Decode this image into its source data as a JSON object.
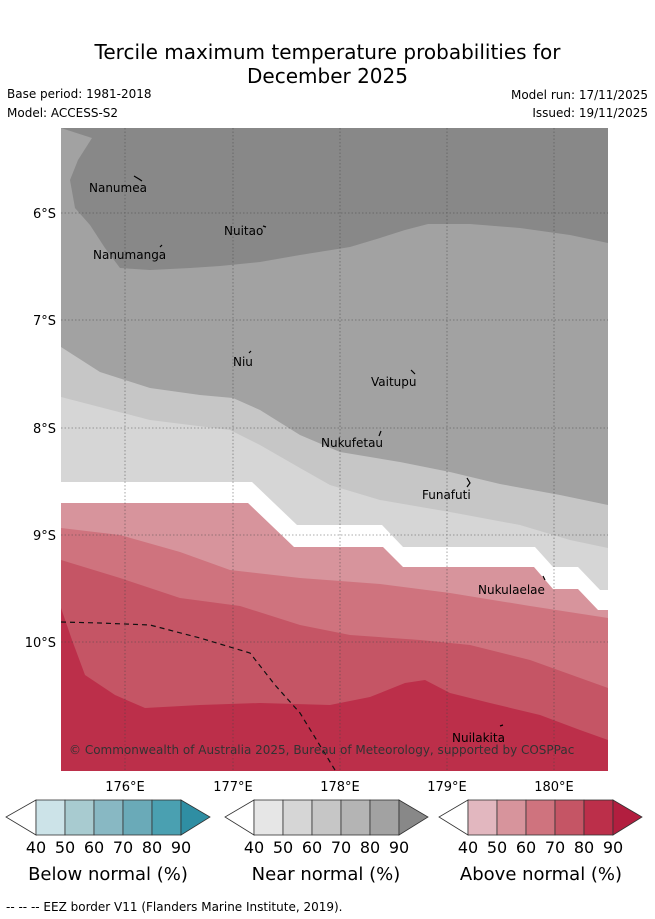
{
  "title_line1": "Tercile maximum temperature probabilities for",
  "title_line2": "December 2025",
  "base_period": "Base period: 1981-2018",
  "model": "Model: ACCESS-S2",
  "model_run": "Model run: 17/11/2025",
  "issued": "Issued: 19/11/2025",
  "map": {
    "lat_ticks": [
      "6°S",
      "7°S",
      "8°S",
      "9°S",
      "10°S"
    ],
    "lon_ticks": [
      "176°E",
      "177°E",
      "178°E",
      "179°E",
      "180°E"
    ],
    "places": {
      "nanumea": "Nanumea",
      "nuitao": "Nuitao",
      "nanumanga": "Nanumanga",
      "niu": "Niu",
      "vaitupu": "Vaitupu",
      "nukufetau": "Nukufetau",
      "funafuti": "Funafuti",
      "nukulaelae": "Nukulaelae",
      "nuilakita": "Nuilakita"
    },
    "copyright": "© Commonwealth of Australia 2025, Bureau of Meteorology, supported by COSPPac"
  },
  "colors": {
    "near": [
      "#e6e6e6",
      "#d6d6d6",
      "#c6c6c6",
      "#b4b4b4",
      "#a2a2a2",
      "#888888"
    ],
    "above": [
      "#e2b7bf",
      "#d7949c",
      "#cf737e",
      "#c55565",
      "#bc2f4a",
      "#b21e3f"
    ],
    "below": [
      "#cce3e8",
      "#a8cbd0",
      "#88b8c3",
      "#6aaab8",
      "#4aa0b1",
      "#2f8ea3"
    ]
  },
  "legends": {
    "below": {
      "title": "Below normal (%)",
      "ticks": [
        "40",
        "50",
        "60",
        "70",
        "80",
        "90"
      ]
    },
    "near": {
      "title": "Near normal (%)",
      "ticks": [
        "40",
        "50",
        "60",
        "70",
        "80",
        "90"
      ]
    },
    "above": {
      "title": "Above normal (%)",
      "ticks": [
        "40",
        "50",
        "60",
        "70",
        "80",
        "90"
      ]
    }
  },
  "footnote": "--  --  -- EEZ border V11 (Flanders Marine Institute, 2019)."
}
